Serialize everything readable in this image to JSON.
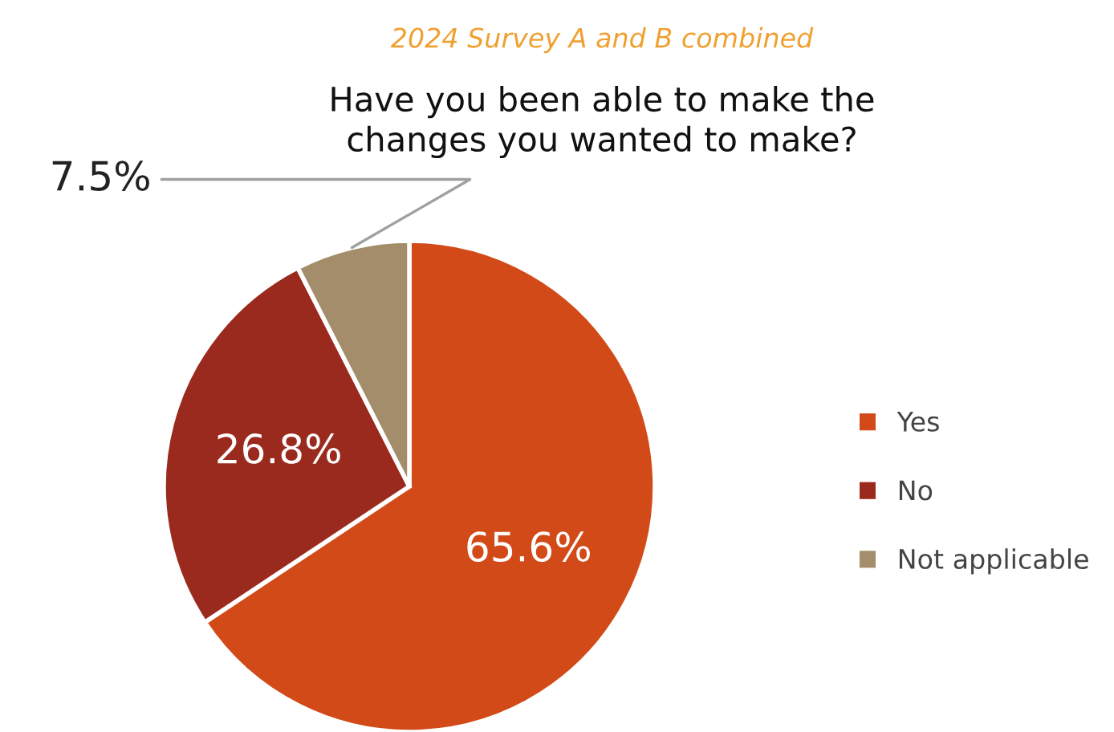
{
  "chart_data": {
    "type": "pie",
    "subtitle": "2024 Survey A and B combined",
    "title": "Have you been able to make the changes you wanted to make?",
    "categories": [
      "Yes",
      "No",
      "Not applicable"
    ],
    "values": [
      65.6,
      26.8,
      7.5
    ],
    "colors": [
      "#d24a17",
      "#9b2a1e",
      "#a48d6a"
    ],
    "value_labels": [
      "65.6%",
      "26.8%",
      "7.5%"
    ],
    "legend": "right"
  }
}
